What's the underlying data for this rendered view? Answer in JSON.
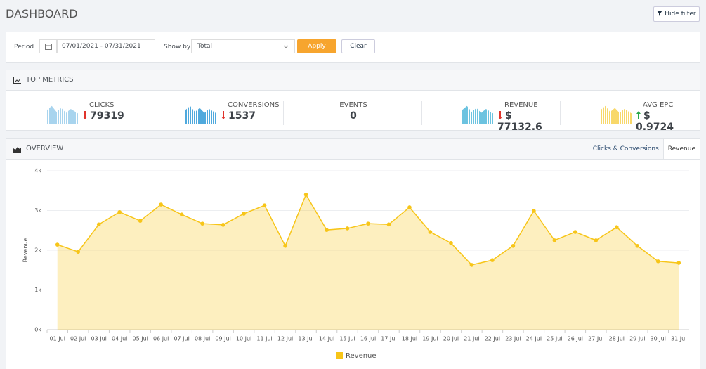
{
  "header": {
    "title": "DASHBOARD",
    "hide_filter": "Hide filter"
  },
  "filter": {
    "period_label": "Period",
    "period_value": "07/01/2021 - 07/31/2021",
    "show_by_label": "Show by",
    "show_by_value": "Total",
    "apply": "Apply",
    "clear": "Clear"
  },
  "top_metrics": {
    "title": "TOP METRICS",
    "metrics": [
      {
        "label": "CLICKS",
        "value": 79319,
        "trend": "down"
      },
      {
        "label": "CONVERSIONS",
        "value": 1537,
        "trend": "down"
      },
      {
        "label": "EVENTS",
        "value": 0
      },
      {
        "label": "REVENUE",
        "value": "$ 77132.6",
        "trend": "down"
      },
      {
        "label": "AVG EPC",
        "value": "$ 0.9724",
        "trend": "up"
      }
    ]
  },
  "overview": {
    "title": "OVERVIEW",
    "tabs": [
      "Clicks & Conversions",
      "Revenue"
    ],
    "active_tab": 1
  },
  "chart_data": {
    "type": "area",
    "y_label": "Revenue",
    "categories": [
      "01 Jul",
      "02 Jul",
      "03 Jul",
      "04 Jul",
      "05 Jul",
      "06 Jul",
      "07 Jul",
      "08 Jul",
      "09 Jul",
      "10 Jul",
      "11 Jul",
      "12 Jul",
      "13 Jul",
      "14 Jul",
      "15 Jul",
      "16 Jul",
      "17 Jul",
      "18 Jul",
      "19 Jul",
      "20 Jul",
      "21 Jul",
      "22 Jul",
      "23 Jul",
      "24 Jul",
      "25 Jul",
      "26 Jul",
      "27 Jul",
      "28 Jul",
      "29 Jul",
      "30 Jul",
      "31 Jul"
    ],
    "series": [
      {
        "name": "Revenue",
        "color": "#f7c518",
        "values": [
          2140,
          1960,
          2650,
          2960,
          2740,
          3150,
          2900,
          2670,
          2640,
          2920,
          3130,
          2110,
          3400,
          2510,
          2550,
          2670,
          2650,
          3080,
          2460,
          2180,
          1630,
          1750,
          2110,
          2990,
          2250,
          2460,
          2250,
          2580,
          2110,
          1720,
          1680
        ]
      }
    ],
    "ylim": [
      0,
      4000
    ],
    "yticks": [
      {
        "value": 0,
        "label": "0k"
      },
      {
        "value": 1000,
        "label": "1k"
      },
      {
        "value": 2000,
        "label": "2k"
      },
      {
        "value": 3000,
        "label": "3k"
      },
      {
        "value": 4000,
        "label": "4k"
      }
    ],
    "grid": true
  }
}
